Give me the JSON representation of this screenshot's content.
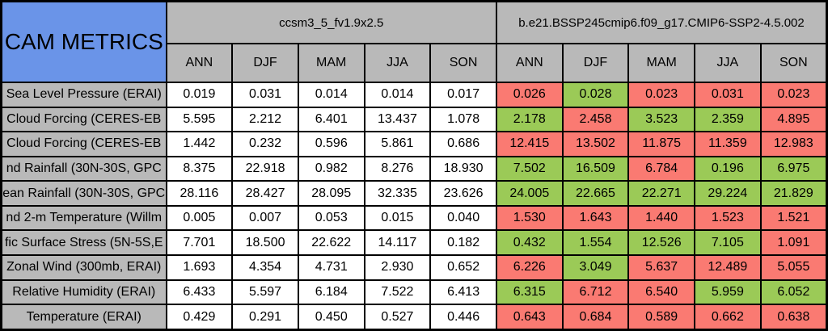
{
  "colors": {
    "title_bg": "#6a94e8",
    "header_bg": "#b9b9b9",
    "ref_cell_bg": "#ffffff",
    "better_bg": "#9bca57",
    "worse_bg": "#fa7a72",
    "border": "#000000",
    "text": "#000000"
  },
  "chart_data": {
    "type": "table",
    "title": "CAM METRICS",
    "column_groups": [
      "ccsm3_5_fv1.9x2.5",
      "b.e21.BSSP245cmip6.f09_g17.CMIP6-SSP2-4.5.002"
    ],
    "seasons": [
      "ANN",
      "DJF",
      "MAM",
      "JJA",
      "SON"
    ],
    "color_coding": {
      "better": "green cell",
      "worse": "red cell"
    },
    "rows": [
      {
        "metric": "Sea Level Pressure (ERAI)",
        "ref_values": [
          "0.019",
          "0.031",
          "0.014",
          "0.014",
          "0.017"
        ],
        "test_values": [
          "0.026",
          "0.028",
          "0.023",
          "0.031",
          "0.023"
        ],
        "test_status": [
          "worse",
          "better",
          "worse",
          "worse",
          "worse"
        ]
      },
      {
        "metric": "Cloud Forcing (CERES-EB",
        "ref_values": [
          "5.595",
          "2.212",
          "6.401",
          "13.437",
          "1.078"
        ],
        "test_values": [
          "2.178",
          "2.458",
          "3.523",
          "2.359",
          "4.895"
        ],
        "test_status": [
          "better",
          "worse",
          "better",
          "better",
          "worse"
        ]
      },
      {
        "metric": "Cloud Forcing (CERES-EB",
        "ref_values": [
          "1.442",
          "0.232",
          "0.596",
          "5.861",
          "0.686"
        ],
        "test_values": [
          "12.415",
          "13.502",
          "11.875",
          "11.359",
          "12.983"
        ],
        "test_status": [
          "worse",
          "worse",
          "worse",
          "worse",
          "worse"
        ]
      },
      {
        "metric": "nd Rainfall (30N-30S, GPC",
        "ref_values": [
          "8.375",
          "22.918",
          "0.982",
          "8.276",
          "18.930"
        ],
        "test_values": [
          "7.502",
          "16.509",
          "6.784",
          "0.196",
          "6.975"
        ],
        "test_status": [
          "better",
          "better",
          "worse",
          "better",
          "better"
        ]
      },
      {
        "metric": "ean Rainfall (30N-30S, GPC",
        "ref_values": [
          "28.116",
          "28.427",
          "28.095",
          "32.335",
          "23.626"
        ],
        "test_values": [
          "24.005",
          "22.665",
          "22.271",
          "29.224",
          "21.829"
        ],
        "test_status": [
          "better",
          "better",
          "better",
          "better",
          "better"
        ]
      },
      {
        "metric": "nd 2-m Temperature (Willm",
        "ref_values": [
          "0.005",
          "0.007",
          "0.053",
          "0.015",
          "0.040"
        ],
        "test_values": [
          "1.530",
          "1.643",
          "1.440",
          "1.523",
          "1.521"
        ],
        "test_status": [
          "worse",
          "worse",
          "worse",
          "worse",
          "worse"
        ]
      },
      {
        "metric": "fic Surface Stress (5N-5S,E",
        "ref_values": [
          "7.701",
          "18.500",
          "22.622",
          "14.117",
          "0.182"
        ],
        "test_values": [
          "0.432",
          "1.554",
          "12.526",
          "7.105",
          "1.091"
        ],
        "test_status": [
          "better",
          "better",
          "better",
          "better",
          "worse"
        ]
      },
      {
        "metric": "Zonal Wind (300mb, ERAI)",
        "ref_values": [
          "1.693",
          "4.354",
          "4.731",
          "2.930",
          "0.652"
        ],
        "test_values": [
          "6.226",
          "3.049",
          "5.637",
          "12.489",
          "5.055"
        ],
        "test_status": [
          "worse",
          "better",
          "worse",
          "worse",
          "worse"
        ]
      },
      {
        "metric": "Relative Humidity (ERAI)",
        "ref_values": [
          "6.433",
          "5.597",
          "6.184",
          "7.522",
          "6.413"
        ],
        "test_values": [
          "6.315",
          "6.712",
          "6.540",
          "5.959",
          "6.052"
        ],
        "test_status": [
          "better",
          "worse",
          "worse",
          "better",
          "better"
        ]
      },
      {
        "metric": "Temperature (ERAI)",
        "ref_values": [
          "0.429",
          "0.291",
          "0.450",
          "0.527",
          "0.446"
        ],
        "test_values": [
          "0.643",
          "0.684",
          "0.589",
          "0.662",
          "0.638"
        ],
        "test_status": [
          "worse",
          "worse",
          "worse",
          "worse",
          "worse"
        ]
      }
    ]
  }
}
